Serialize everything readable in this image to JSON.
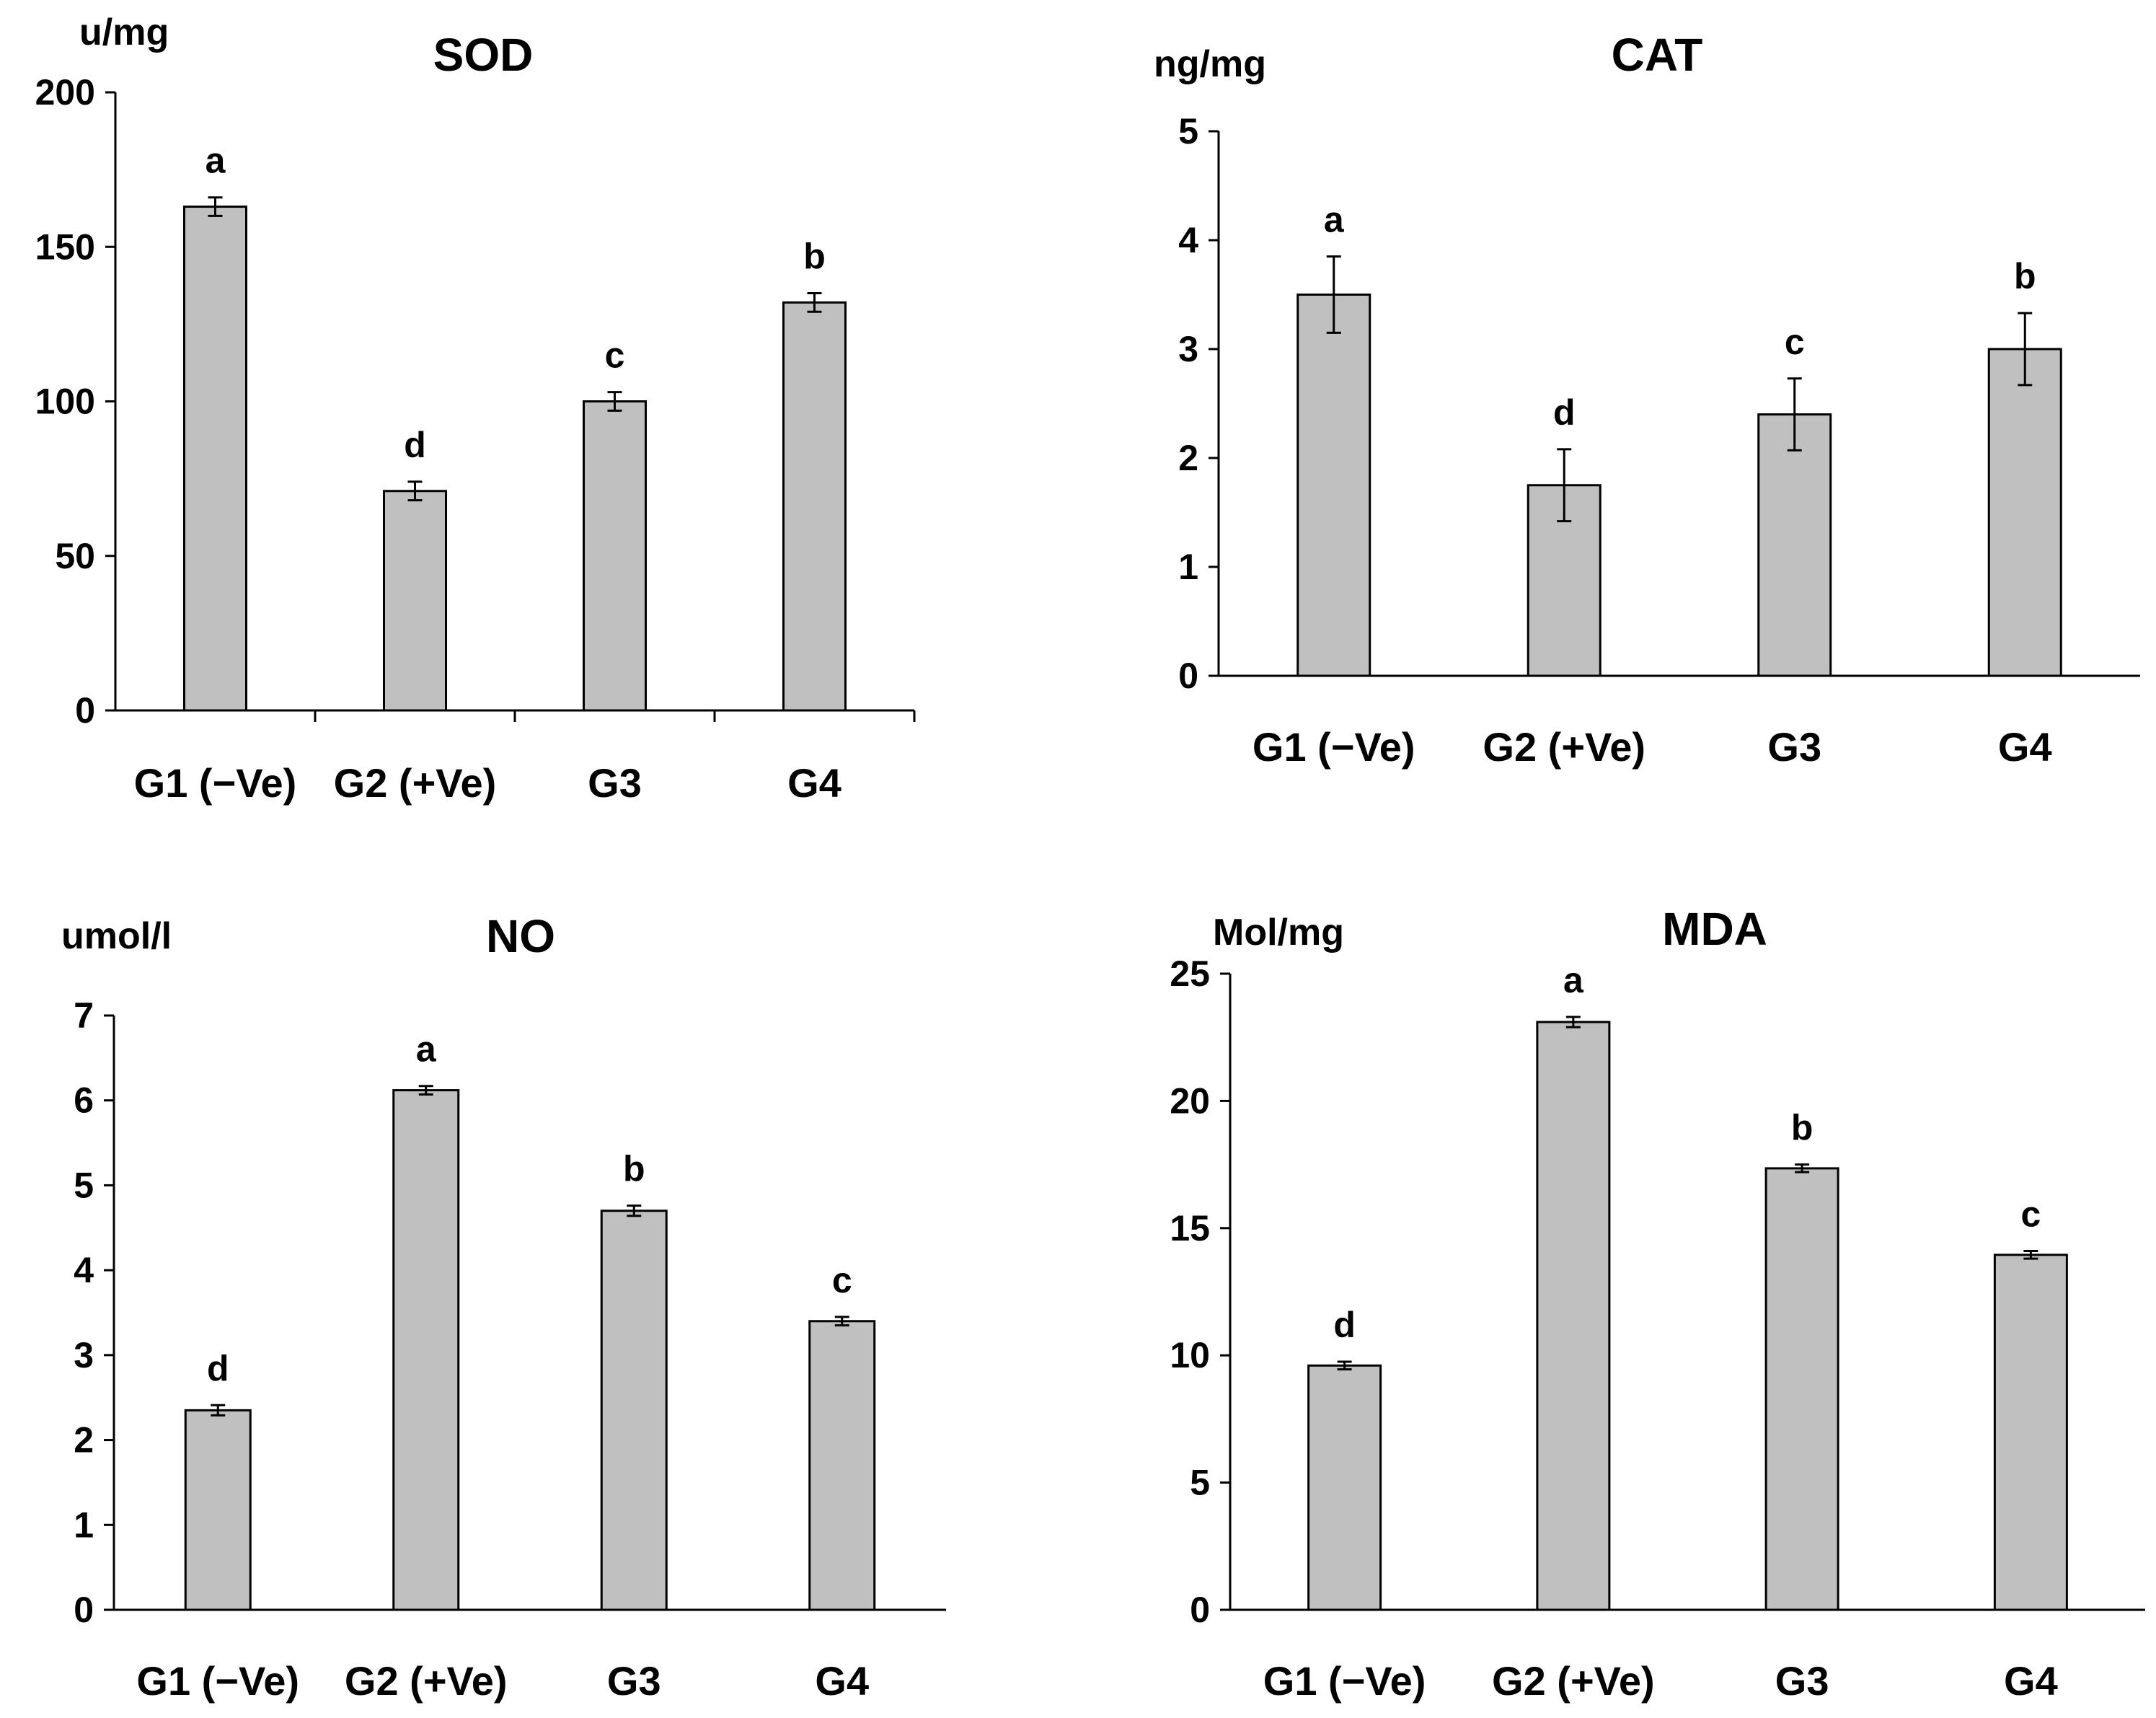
{
  "chart_data": [
    {
      "type": "bar",
      "title": "SOD",
      "ylabel": "u/mg",
      "ylim": [
        0,
        200
      ],
      "yticks": [
        "0",
        "50",
        "100",
        "150",
        "200"
      ],
      "categories": [
        "G1 (−Ve)",
        "G2 (+Ve)",
        "G3",
        "G4"
      ],
      "values": [
        163,
        71,
        100,
        132
      ],
      "errors": [
        3,
        3,
        3,
        3
      ],
      "significance": [
        "a",
        "d",
        "c",
        "b"
      ],
      "bar_color": "#c0c0c0"
    },
    {
      "type": "bar",
      "title": "CAT",
      "ylabel": "ng/mg",
      "ylim": [
        0,
        5
      ],
      "yticks": [
        "0",
        "1",
        "2",
        "3",
        "4",
        "5"
      ],
      "categories": [
        "G1 (−Ve)",
        "G2 (+Ve)",
        "G3",
        "G4"
      ],
      "values": [
        3.5,
        1.75,
        2.4,
        3.0
      ],
      "errors": [
        0.35,
        0.33,
        0.33,
        0.33
      ],
      "significance": [
        "a",
        "d",
        "c",
        "b"
      ],
      "bar_color": "#c0c0c0"
    },
    {
      "type": "bar",
      "title": "NO",
      "ylabel": "umol/l",
      "ylim": [
        0,
        7
      ],
      "yticks": [
        "0",
        "1",
        "2",
        "3",
        "4",
        "5",
        "6",
        "7"
      ],
      "categories": [
        "G1 (−Ve)",
        "G2 (+Ve)",
        "G3",
        "G4"
      ],
      "values": [
        2.35,
        6.12,
        4.7,
        3.4
      ],
      "errors": [
        0.06,
        0.05,
        0.06,
        0.05
      ],
      "significance": [
        "d",
        "a",
        "b",
        "c"
      ],
      "bar_color": "#c0c0c0"
    },
    {
      "type": "bar",
      "title": "MDA",
      "ylabel": "Mol/mg",
      "ylim": [
        0,
        25
      ],
      "yticks": [
        "0",
        "5",
        "10",
        "15",
        "20",
        "25"
      ],
      "categories": [
        "G1 (−Ve)",
        "G2 (+Ve)",
        "G3",
        "G4"
      ],
      "values": [
        9.6,
        23.1,
        17.35,
        13.95
      ],
      "errors": [
        0.15,
        0.2,
        0.15,
        0.15
      ],
      "significance": [
        "d",
        "a",
        "b",
        "c"
      ],
      "bar_color": "#c0c0c0"
    }
  ]
}
